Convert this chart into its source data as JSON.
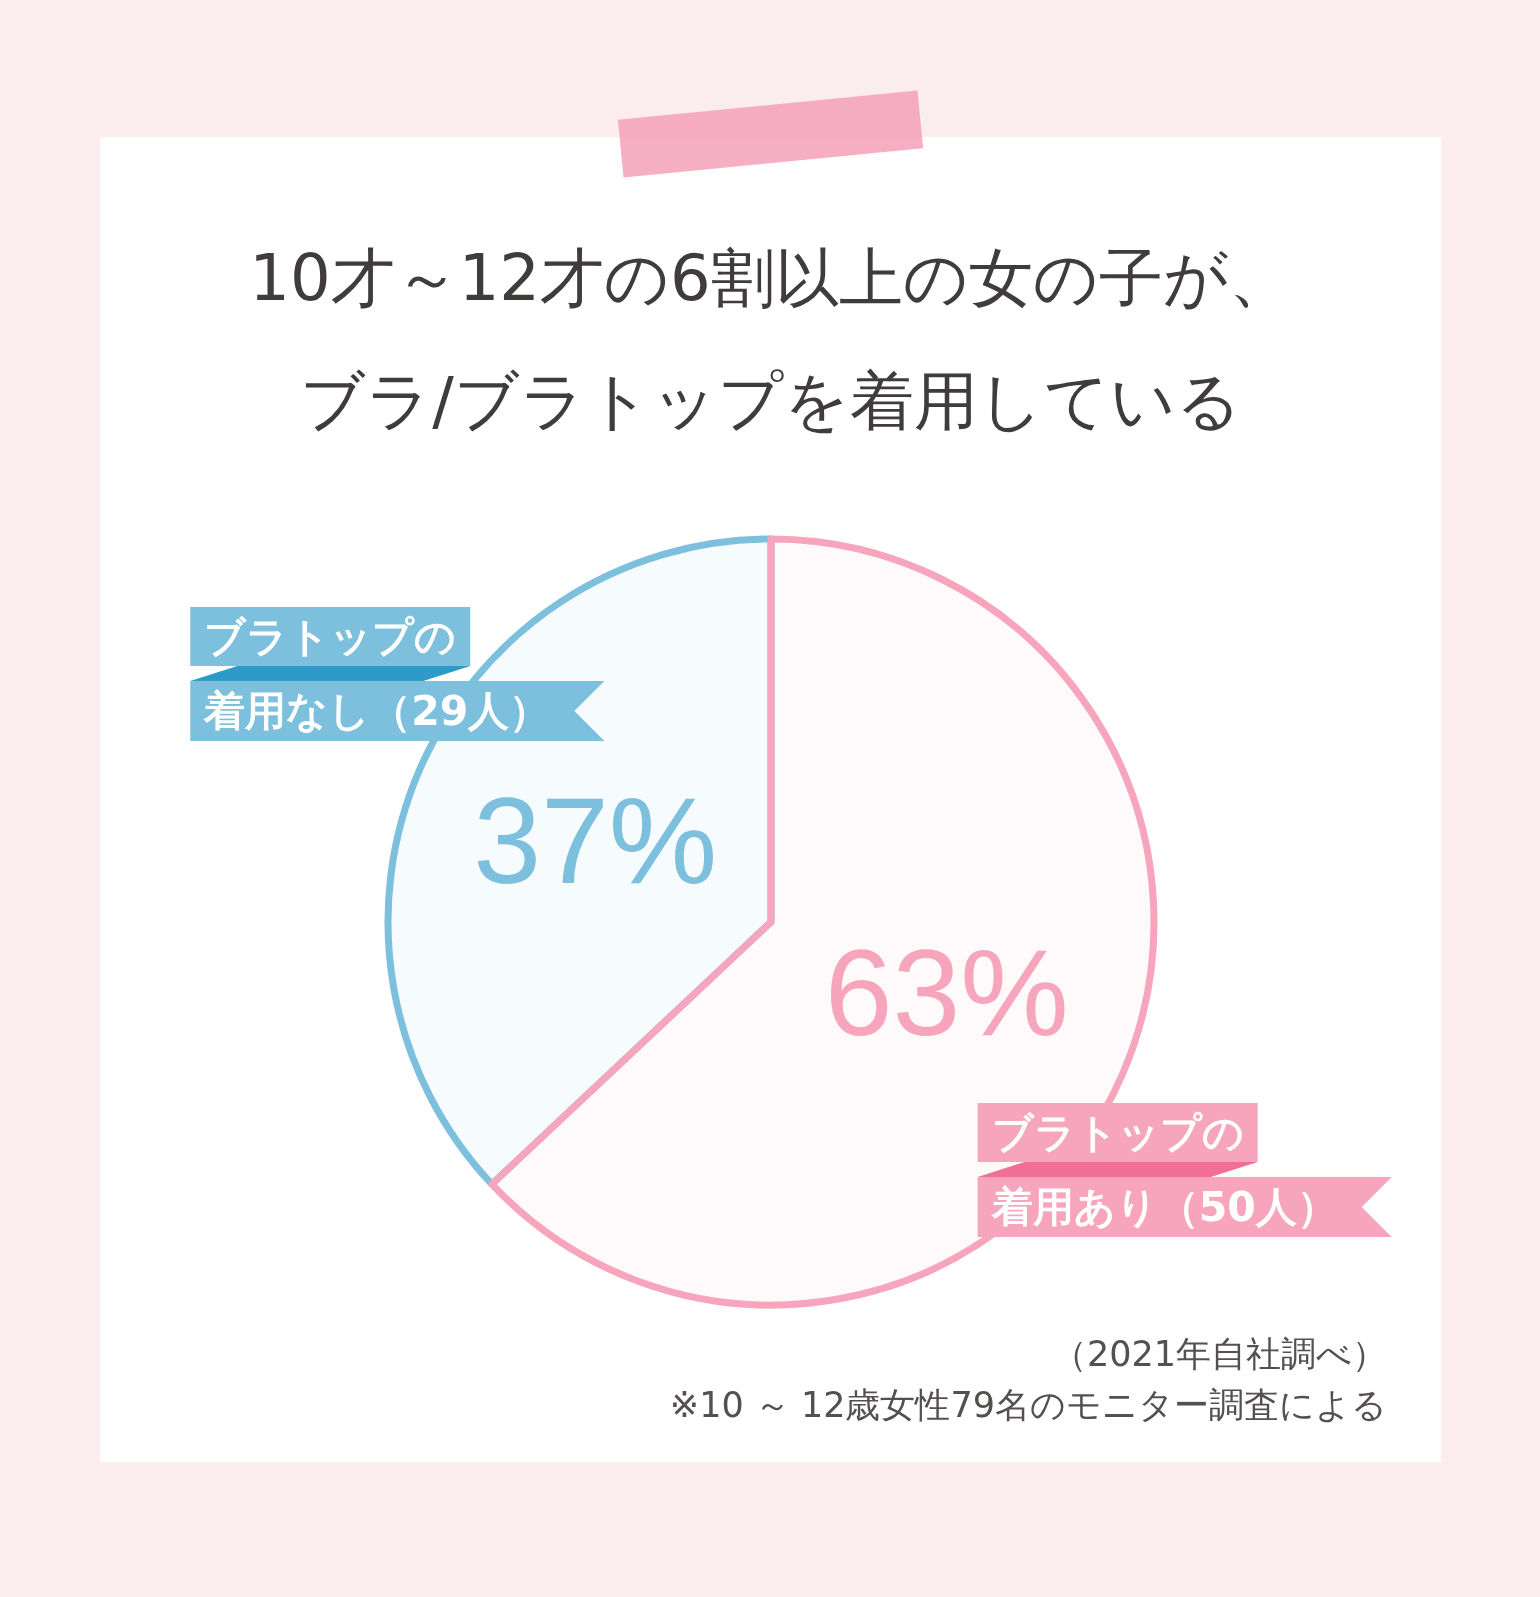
{
  "chart_data": {
    "type": "pie",
    "title": "10才～12才の6割以上の女の子が、ブラ/ブラトップを着用している",
    "categories": [
      "ブラトップの着用なし（29人）",
      "ブラトップの着用あり（50人）"
    ],
    "values": [
      37,
      63
    ],
    "value_labels": [
      "37%",
      "63%"
    ],
    "colors": [
      "#7cc0dd",
      "#f6a5bd"
    ],
    "annotations": [
      "（2021年自社調べ）",
      "※10 ～ 12歳女性79名のモニター調査による"
    ]
  }
}
